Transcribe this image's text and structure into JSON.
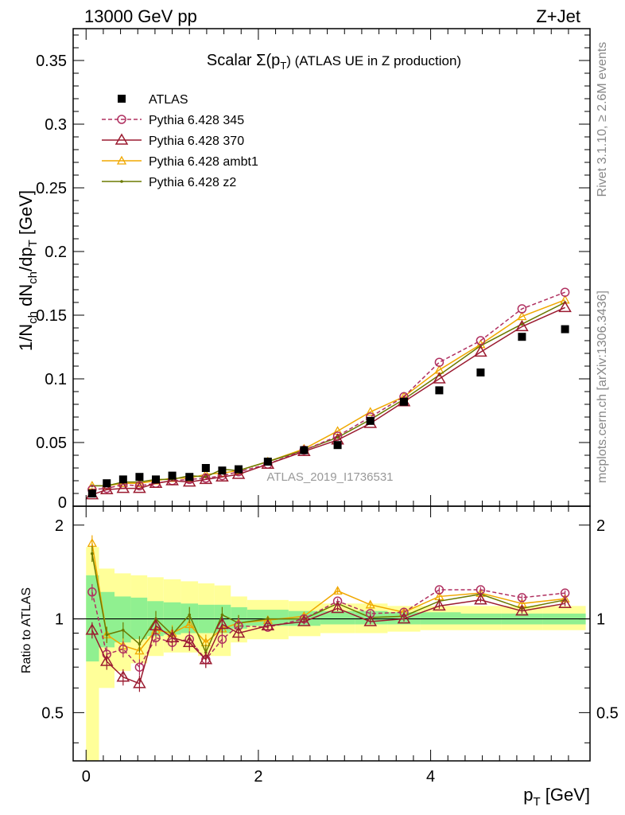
{
  "header": {
    "left": "13000 GeV pp",
    "right": "Z+Jet"
  },
  "title": "Scalar Σ(p_T) (ATLAS UE in Z production)",
  "watermark": "ATLAS_2019_I1736531",
  "side_labels": {
    "top": "Rivet 3.1.10, ≥ 2.6M events",
    "bottom": "mcplots.cern.ch [arXiv:1306.3436]"
  },
  "colors": {
    "atlas": "#000000",
    "p345": "#b03060",
    "p370": "#9b1b30",
    "ambt1": "#f0a800",
    "z2": "#6b7a00",
    "band_inner": "#90f090",
    "band_outer": "#ffff99"
  },
  "chart_data": {
    "type": "line",
    "xlabel": "p_T [GeV]",
    "ylabel": "1/N_ch dN_ch/dp_T [GeV]",
    "ratio_ylabel": "Ratio to ATLAS",
    "xlim": [
      -0.15,
      5.85
    ],
    "ylim": [
      0,
      0.375
    ],
    "ratio_ylim": [
      0.35,
      2.3
    ],
    "x_ticks": [
      "0",
      "2",
      "4"
    ],
    "y_ticks": [
      "0",
      "0.05",
      "0.1",
      "0.15",
      "0.2",
      "0.25",
      "0.3",
      "0.35"
    ],
    "ratio_ticks": [
      "0.5",
      "1",
      "2"
    ],
    "x": [
      0.07,
      0.24,
      0.43,
      0.62,
      0.81,
      1.0,
      1.2,
      1.39,
      1.58,
      1.77,
      2.11,
      2.53,
      2.92,
      3.3,
      3.69,
      4.1,
      4.58,
      5.06,
      5.56
    ],
    "bin_edges": [
      0.0,
      0.15,
      0.33,
      0.52,
      0.71,
      0.9,
      1.1,
      1.3,
      1.49,
      1.68,
      1.87,
      2.35,
      2.72,
      3.12,
      3.5,
      3.88,
      4.35,
      4.82,
      5.3,
      5.8
    ],
    "legend_position": "top-left",
    "series": [
      {
        "name": "ATLAS",
        "style": "marker",
        "values": [
          0.01,
          0.018,
          0.021,
          0.023,
          0.021,
          0.024,
          0.023,
          0.03,
          0.028,
          0.029,
          0.035,
          0.044,
          0.048,
          0.067,
          0.082,
          0.091,
          0.105,
          0.133,
          0.139
        ]
      },
      {
        "name": "Pythia 6.428 345",
        "style": "dashed-circle",
        "values": [
          0.013,
          0.014,
          0.017,
          0.016,
          0.018,
          0.02,
          0.021,
          0.022,
          0.024,
          0.027,
          0.033,
          0.044,
          0.055,
          0.07,
          0.086,
          0.113,
          0.13,
          0.155,
          0.168
        ]
      },
      {
        "name": "Pythia 6.428 370",
        "style": "solid-triangle",
        "values": [
          0.009,
          0.013,
          0.014,
          0.014,
          0.018,
          0.02,
          0.019,
          0.021,
          0.023,
          0.025,
          0.033,
          0.043,
          0.052,
          0.065,
          0.082,
          0.1,
          0.121,
          0.141,
          0.156
        ]
      },
      {
        "name": "Pythia 6.428 ambt1",
        "style": "solid-small-triangle",
        "values": [
          0.016,
          0.016,
          0.018,
          0.018,
          0.02,
          0.022,
          0.022,
          0.025,
          0.026,
          0.028,
          0.035,
          0.045,
          0.059,
          0.074,
          0.086,
          0.107,
          0.127,
          0.149,
          0.162
        ]
      },
      {
        "name": "Pythia 6.428 z2",
        "style": "solid-dot",
        "values": [
          0.016,
          0.016,
          0.019,
          0.019,
          0.021,
          0.021,
          0.024,
          0.023,
          0.029,
          0.028,
          0.035,
          0.044,
          0.054,
          0.068,
          0.084,
          0.103,
          0.126,
          0.143,
          0.16
        ]
      }
    ],
    "ratio_series": [
      {
        "name": "Pythia 6.428 345",
        "values": [
          1.22,
          0.77,
          0.8,
          0.7,
          0.87,
          0.84,
          0.86,
          0.74,
          0.86,
          0.95,
          0.94,
          1.0,
          1.14,
          1.04,
          1.05,
          1.24,
          1.24,
          1.17,
          1.21
        ]
      },
      {
        "name": "Pythia 6.428 370",
        "values": [
          0.92,
          0.73,
          0.65,
          0.62,
          0.95,
          0.87,
          0.84,
          0.74,
          0.96,
          0.9,
          0.95,
          0.98,
          1.08,
          0.98,
          1.0,
          1.1,
          1.15,
          1.06,
          1.12
        ]
      },
      {
        "name": "Pythia 6.428 ambt1",
        "values": [
          1.75,
          0.89,
          0.82,
          0.79,
          0.92,
          0.9,
          0.96,
          0.84,
          0.93,
          0.97,
          0.99,
          1.02,
          1.23,
          1.11,
          1.05,
          1.18,
          1.21,
          1.12,
          1.16
        ]
      },
      {
        "name": "Pythia 6.428 z2",
        "values": [
          1.62,
          0.89,
          0.92,
          0.83,
          1.0,
          0.89,
          1.03,
          0.78,
          1.03,
          0.97,
          1.0,
          1.0,
          1.12,
          1.01,
          1.02,
          1.14,
          1.2,
          1.08,
          1.15
        ]
      }
    ],
    "uncertainty": {
      "inner": [
        [
          0.73,
          1.38
        ],
        [
          0.81,
          1.22
        ],
        [
          0.84,
          1.18
        ],
        [
          0.86,
          1.17
        ],
        [
          0.88,
          1.14
        ],
        [
          0.89,
          1.13
        ],
        [
          0.9,
          1.12
        ],
        [
          0.9,
          1.11
        ],
        [
          0.9,
          1.11
        ],
        [
          0.93,
          1.09
        ],
        [
          0.95,
          1.07
        ],
        [
          0.95,
          1.06
        ],
        [
          0.96,
          1.06
        ],
        [
          0.96,
          1.06
        ],
        [
          0.96,
          1.05
        ],
        [
          0.96,
          1.05
        ],
        [
          0.96,
          1.04
        ],
        [
          0.96,
          1.04
        ],
        [
          0.96,
          1.04
        ]
      ],
      "outer": [
        [
          0.35,
          1.7
        ],
        [
          0.6,
          1.45
        ],
        [
          0.68,
          1.4
        ],
        [
          0.72,
          1.38
        ],
        [
          0.76,
          1.36
        ],
        [
          0.78,
          1.34
        ],
        [
          0.78,
          1.32
        ],
        [
          0.76,
          1.3
        ],
        [
          0.76,
          1.28
        ],
        [
          0.84,
          1.18
        ],
        [
          0.86,
          1.15
        ],
        [
          0.88,
          1.14
        ],
        [
          0.9,
          1.12
        ],
        [
          0.9,
          1.12
        ],
        [
          0.91,
          1.1
        ],
        [
          0.92,
          1.1
        ],
        [
          0.92,
          1.1
        ],
        [
          0.92,
          1.1
        ],
        [
          0.92,
          1.1
        ]
      ]
    }
  }
}
